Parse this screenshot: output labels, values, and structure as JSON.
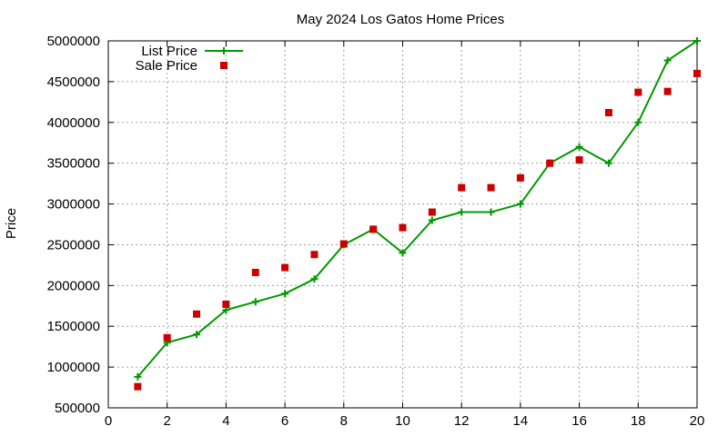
{
  "chart_data": {
    "type": "line",
    "title": "May 2024 Los Gatos Home Prices",
    "xlabel": "",
    "ylabel": "Price",
    "xlim": [
      0,
      20
    ],
    "ylim": [
      500000,
      5000000
    ],
    "x_ticks": [
      "0",
      "2",
      "4",
      "6",
      "8",
      "10",
      "12",
      "14",
      "16",
      "18",
      "20"
    ],
    "y_ticks": [
      "500000",
      "1000000",
      "1500000",
      "2000000",
      "2500000",
      "3000000",
      "3500000",
      "4000000",
      "4500000",
      "5000000"
    ],
    "grid": true,
    "legend_position": "top-left",
    "x": [
      1,
      2,
      3,
      4,
      5,
      6,
      7,
      8,
      9,
      10,
      11,
      12,
      13,
      14,
      15,
      16,
      17,
      18,
      19,
      20
    ],
    "series": [
      {
        "name": "List Price",
        "style": "line-with-plus-markers",
        "color": "#009900",
        "values": [
          880000,
          1300000,
          1400000,
          1700000,
          1800000,
          1900000,
          2080000,
          2500000,
          2690000,
          2400000,
          2800000,
          2900000,
          2900000,
          3000000,
          3500000,
          3700000,
          3500000,
          4000000,
          4760000,
          5000000
        ]
      },
      {
        "name": "Sale Price",
        "style": "square-points",
        "color": "#cc0000",
        "values": [
          760000,
          1360000,
          1650000,
          1770000,
          2160000,
          2220000,
          2380000,
          2510000,
          2690000,
          2710000,
          2900000,
          3200000,
          3200000,
          3320000,
          3500000,
          3540000,
          4120000,
          4370000,
          4380000,
          4600000
        ]
      }
    ]
  }
}
